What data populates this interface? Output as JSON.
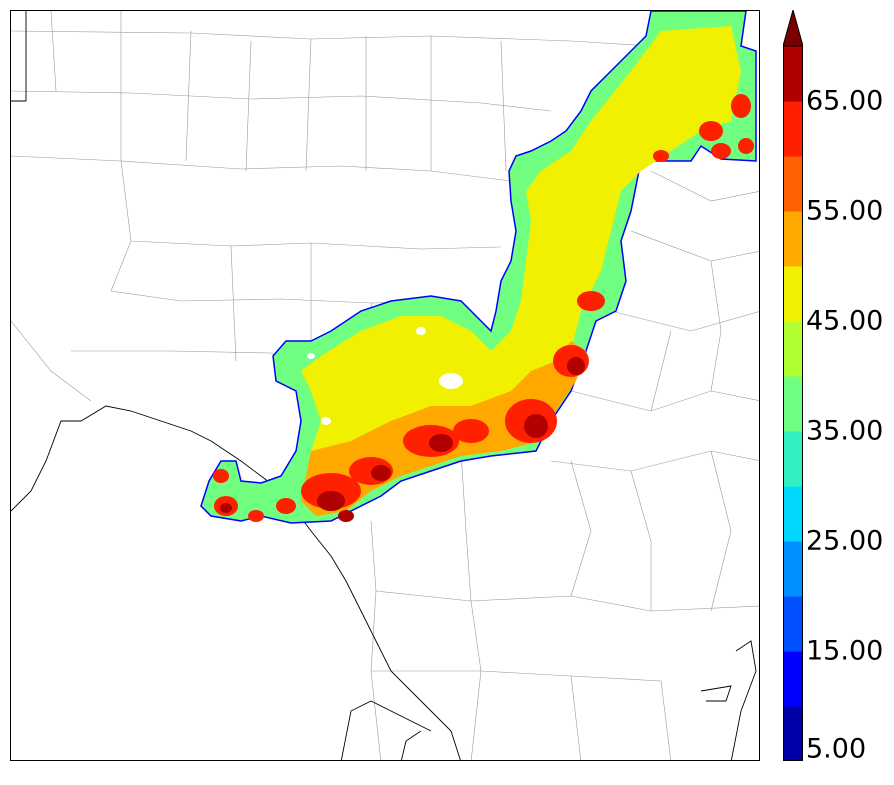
{
  "colorbar": {
    "tick_labels": [
      "5.00",
      "15.00",
      "25.00",
      "35.00",
      "45.00",
      "55.00",
      "65.00"
    ],
    "levels": [
      5,
      10,
      15,
      20,
      25,
      30,
      35,
      40,
      45,
      50,
      55,
      60,
      65,
      70
    ],
    "colors": [
      "#0000a8",
      "#0000ff",
      "#0050ff",
      "#0090ff",
      "#00d8ff",
      "#30f0c0",
      "#70ff80",
      "#b0ff30",
      "#f0f000",
      "#ffa800",
      "#ff6000",
      "#ff2000",
      "#b00000"
    ],
    "extend": "max",
    "extend_color": "#7a0000"
  },
  "map": {
    "echo_colors": {
      "low": "#70ff80",
      "mid": "#f0f000",
      "orange": "#ffa800",
      "red": "#ff2000",
      "dark": "#b00000",
      "edge": "#0000ff"
    }
  }
}
